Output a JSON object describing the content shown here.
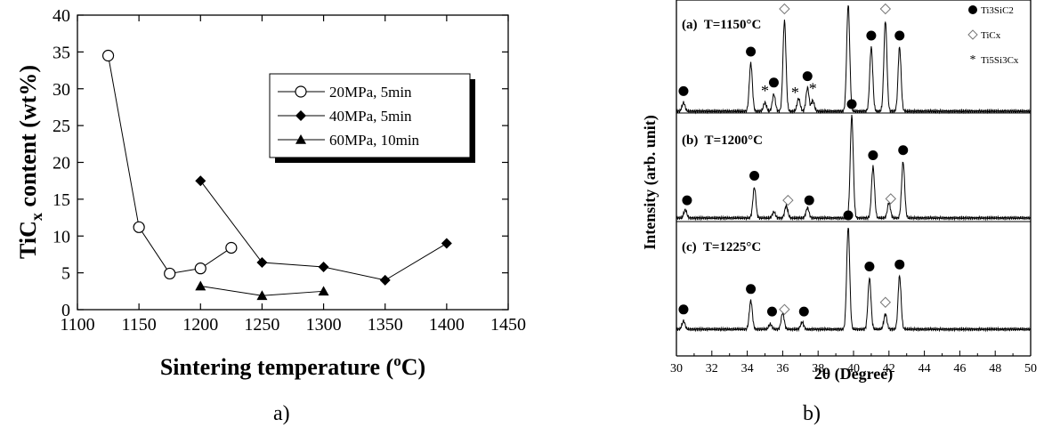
{
  "captions": {
    "a": "a)",
    "b": "b)"
  },
  "chart_data": [
    {
      "type": "line",
      "xlabel": "Sintering temperature (oC)",
      "ylabel": "TiCx content (wt%)",
      "xlim": [
        1100,
        1450
      ],
      "ylim": [
        0,
        40
      ],
      "x_ticks": [
        1100,
        1150,
        1200,
        1250,
        1300,
        1350,
        1400,
        1450
      ],
      "y_ticks": [
        0,
        5,
        10,
        15,
        20,
        25,
        30,
        35,
        40
      ],
      "legend_position": "top-right",
      "grid": false,
      "series": [
        {
          "name": "20MPa, 5min",
          "marker": "open-circle",
          "x": [
            1125,
            1150,
            1175,
            1200,
            1225
          ],
          "y": [
            34.5,
            11.2,
            4.9,
            5.6,
            8.4
          ]
        },
        {
          "name": "40MPa, 5min",
          "marker": "filled-diamond",
          "x": [
            1200,
            1250,
            1300,
            1350,
            1400
          ],
          "y": [
            17.5,
            6.4,
            5.8,
            4.0,
            9.0
          ]
        },
        {
          "name": "60MPa, 10min",
          "marker": "filled-triangle",
          "x": [
            1200,
            1250,
            1300
          ],
          "y": [
            3.2,
            1.9,
            2.5
          ]
        }
      ]
    },
    {
      "type": "line",
      "xlabel": "2θ (Degree)",
      "ylabel": "Intensity (arb. unit)",
      "xlim": [
        30,
        50
      ],
      "x_ticks": [
        30,
        32,
        34,
        36,
        38,
        40,
        42,
        44,
        46,
        48,
        50
      ],
      "legend_position": "top-right",
      "legend": [
        {
          "marker": "filled-circle",
          "label": "Ti3SiC2"
        },
        {
          "marker": "open-diamond",
          "label": "TiCx"
        },
        {
          "marker": "asterisk",
          "label": "Ti5Si3Cx"
        }
      ],
      "panels": [
        {
          "label": "(a)  T=1150°C",
          "peaks": [
            {
              "x": 30.4,
              "h": 0.08
            },
            {
              "x": 34.2,
              "h": 0.45
            },
            {
              "x": 35.0,
              "h": 0.08
            },
            {
              "x": 35.5,
              "h": 0.16
            },
            {
              "x": 36.1,
              "h": 0.85
            },
            {
              "x": 36.9,
              "h": 0.12
            },
            {
              "x": 37.4,
              "h": 0.22
            },
            {
              "x": 37.7,
              "h": 0.1
            },
            {
              "x": 39.7,
              "h": 1.0
            },
            {
              "x": 41.0,
              "h": 0.6
            },
            {
              "x": 41.8,
              "h": 0.85
            },
            {
              "x": 42.6,
              "h": 0.6
            }
          ],
          "markers": [
            {
              "x": 30.4,
              "m": "filled-circle"
            },
            {
              "x": 34.2,
              "m": "filled-circle"
            },
            {
              "x": 35.0,
              "m": "asterisk"
            },
            {
              "x": 35.5,
              "m": "filled-circle"
            },
            {
              "x": 36.1,
              "m": "open-diamond"
            },
            {
              "x": 36.7,
              "m": "asterisk"
            },
            {
              "x": 37.4,
              "m": "filled-circle"
            },
            {
              "x": 37.7,
              "m": "asterisk"
            },
            {
              "x": 39.7,
              "m": "filled-circle"
            },
            {
              "x": 41.0,
              "m": "filled-circle"
            },
            {
              "x": 41.8,
              "m": "open-diamond"
            },
            {
              "x": 42.6,
              "m": "filled-circle"
            }
          ]
        },
        {
          "label": "(b)  T=1200°C",
          "peaks": [
            {
              "x": 30.5,
              "h": 0.08
            },
            {
              "x": 34.4,
              "h": 0.3
            },
            {
              "x": 35.5,
              "h": 0.06
            },
            {
              "x": 36.2,
              "h": 0.12
            },
            {
              "x": 37.4,
              "h": 0.1
            },
            {
              "x": 39.9,
              "h": 1.0
            },
            {
              "x": 41.1,
              "h": 0.5
            },
            {
              "x": 42.0,
              "h": 0.15
            },
            {
              "x": 42.8,
              "h": 0.55
            }
          ],
          "markers": [
            {
              "x": 30.6,
              "m": "filled-circle"
            },
            {
              "x": 34.4,
              "m": "filled-circle"
            },
            {
              "x": 36.3,
              "m": "open-diamond"
            },
            {
              "x": 37.5,
              "m": "filled-circle"
            },
            {
              "x": 39.9,
              "m": "filled-circle"
            },
            {
              "x": 41.1,
              "m": "filled-circle"
            },
            {
              "x": 42.1,
              "m": "open-diamond"
            },
            {
              "x": 42.8,
              "m": "filled-circle"
            }
          ]
        },
        {
          "label": "(c)  T=1225°C",
          "peaks": [
            {
              "x": 30.4,
              "h": 0.08
            },
            {
              "x": 34.2,
              "h": 0.28
            },
            {
              "x": 35.3,
              "h": 0.05
            },
            {
              "x": 36.0,
              "h": 0.16
            },
            {
              "x": 37.1,
              "h": 0.07
            },
            {
              "x": 39.7,
              "h": 1.0
            },
            {
              "x": 40.9,
              "h": 0.5
            },
            {
              "x": 41.8,
              "h": 0.15
            },
            {
              "x": 42.6,
              "h": 0.52
            }
          ],
          "markers": [
            {
              "x": 30.4,
              "m": "filled-circle"
            },
            {
              "x": 34.2,
              "m": "filled-circle"
            },
            {
              "x": 35.4,
              "m": "filled-circle"
            },
            {
              "x": 36.1,
              "m": "open-diamond"
            },
            {
              "x": 37.2,
              "m": "filled-circle"
            },
            {
              "x": 39.7,
              "m": "filled-circle"
            },
            {
              "x": 40.9,
              "m": "filled-circle"
            },
            {
              "x": 41.8,
              "m": "open-diamond"
            },
            {
              "x": 42.6,
              "m": "filled-circle"
            }
          ]
        }
      ]
    }
  ]
}
